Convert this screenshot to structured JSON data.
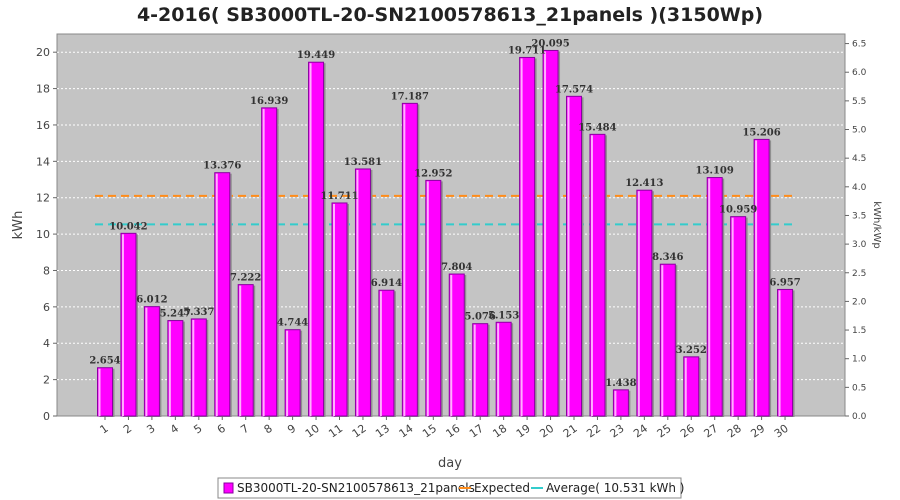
{
  "chart_data": {
    "type": "bar",
    "title": "4-2016( SB3000TL-20-SN2100578613_21panels )(3150Wp)",
    "xlabel": "day",
    "ylabel": "kWh",
    "ylabel_right": "kWh/kWp",
    "ylim": [
      0,
      21
    ],
    "ylim_right": [
      0,
      6.667
    ],
    "yticks": [
      0,
      2,
      4,
      6,
      8,
      10,
      12,
      14,
      16,
      18,
      20
    ],
    "yticks_right": [
      "0.0",
      "0.5",
      "1.0",
      "1.5",
      "2.0",
      "2.5",
      "3.0",
      "3.5",
      "4.0",
      "4.5",
      "5.0",
      "5.5",
      "6.0",
      "6.5"
    ],
    "grid": true,
    "legend_position": "bottom",
    "categories": [
      "1",
      "2",
      "3",
      "4",
      "5",
      "6",
      "7",
      "8",
      "9",
      "10",
      "11",
      "12",
      "13",
      "14",
      "15",
      "16",
      "17",
      "18",
      "19",
      "20",
      "21",
      "22",
      "23",
      "24",
      "25",
      "26",
      "27",
      "28",
      "29",
      "30"
    ],
    "series": [
      {
        "name": "SB3000TL-20-SN2100578613_21panels",
        "kind": "bar",
        "color": "#ff00ff",
        "values": [
          2.654,
          10.042,
          6.012,
          5.247,
          5.337,
          13.376,
          7.222,
          16.939,
          4.744,
          19.449,
          11.711,
          13.581,
          6.914,
          17.187,
          12.952,
          7.804,
          5.076,
          5.153,
          19.711,
          20.095,
          17.574,
          15.484,
          1.438,
          12.413,
          8.346,
          3.252,
          13.109,
          10.959,
          15.206,
          6.957
        ],
        "labels": [
          "2.654",
          "10.042",
          "6.012",
          "5.247",
          "5.337",
          "13.376",
          "7.222",
          "16.939",
          "4.744",
          "19.449",
          "11.711",
          "13.581",
          "6.914",
          "17.187",
          "12.952",
          "7.804",
          "5.076",
          "5.153",
          "19.711",
          "20.095",
          "17.574",
          "15.484",
          "1.438",
          "12.413",
          "8.346",
          "3.252",
          "13.109",
          "10.959",
          "15.206",
          "6.957"
        ]
      },
      {
        "name": "Expected",
        "kind": "line",
        "color": "#ff8c1a",
        "value": 12.1
      },
      {
        "name": "Average( 10.531 kWh )",
        "kind": "line",
        "color": "#33cccc",
        "value": 10.531
      }
    ]
  }
}
